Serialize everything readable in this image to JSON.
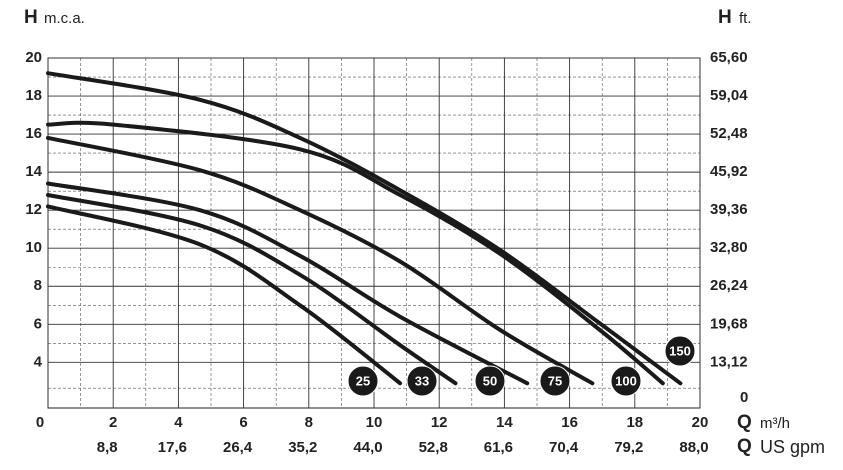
{
  "chart_data": {
    "type": "line",
    "y_axis_symbol": "H",
    "y_axis_unit": "m.c.a.",
    "y2_axis_symbol": "H",
    "y2_axis_unit": "ft.",
    "x_axis_symbol": "Q",
    "x_axis_unit": "m³/h",
    "x2_axis_symbol": "Q",
    "x2_axis_unit": "US gpm",
    "xlim": [
      0,
      20
    ],
    "xticks": [
      0,
      2,
      4,
      6,
      8,
      10,
      12,
      14,
      16,
      18,
      20
    ],
    "x2ticks": [
      {
        "value": 8.8,
        "label": "8,8"
      },
      {
        "value": 17.6,
        "label": "17,6"
      },
      {
        "value": 26.4,
        "label": "26,4"
      },
      {
        "value": 35.2,
        "label": "35,2"
      },
      {
        "value": 44.0,
        "label": "44,0"
      },
      {
        "value": 52.8,
        "label": "52,8"
      },
      {
        "value": 61.6,
        "label": "61,6"
      },
      {
        "value": 70.4,
        "label": "70,4"
      },
      {
        "value": 79.2,
        "label": "79,2"
      },
      {
        "value": 88.0,
        "label": "88,0"
      }
    ],
    "ylim": [
      1.6,
      20
    ],
    "yticks": [
      4,
      6,
      8,
      10,
      12,
      14,
      16,
      18,
      20
    ],
    "y2lim": [
      5.248,
      65.6
    ],
    "y2ticks": [
      {
        "value": 13.12,
        "label": "13,12"
      },
      {
        "value": 19.68,
        "label": "19,68"
      },
      {
        "value": 26.24,
        "label": "26,24"
      },
      {
        "value": 32.8,
        "label": "32,80"
      },
      {
        "value": 39.36,
        "label": "39,36"
      },
      {
        "value": 45.92,
        "label": "45,92"
      },
      {
        "value": 52.48,
        "label": "52,48"
      },
      {
        "value": 59.04,
        "label": "59,04"
      },
      {
        "value": 65.6,
        "label": "65,60"
      }
    ],
    "y2_origin_label": "0",
    "grid": true,
    "series": [
      {
        "name": "25",
        "color": "#1a1a1a",
        "x": [
          0,
          4.66,
          7.73,
          10.8
        ],
        "values": [
          12.2,
          10.2,
          7.0,
          2.9
        ]
      },
      {
        "name": "33",
        "color": "#1a1a1a",
        "x": [
          0,
          4.66,
          7.73,
          10.8,
          12.5
        ],
        "values": [
          12.8,
          11.2,
          8.6,
          4.9,
          2.9
        ]
      },
      {
        "name": "50",
        "color": "#1a1a1a",
        "x": [
          0,
          4.66,
          7.73,
          10.8,
          14.7
        ],
        "values": [
          13.4,
          12.0,
          9.6,
          6.4,
          2.9
        ]
      },
      {
        "name": "75",
        "color": "#1a1a1a",
        "x": [
          0,
          4.66,
          7.73,
          10.8,
          13.87,
          16.7
        ],
        "values": [
          15.8,
          14.1,
          12.0,
          9.3,
          5.7,
          2.9
        ]
      },
      {
        "name": "100",
        "color": "#1a1a1a",
        "x": [
          0,
          2,
          7.73,
          10.8,
          13.87,
          16.93,
          18.86
        ],
        "values": [
          16.5,
          16.5,
          15.2,
          12.8,
          9.7,
          5.7,
          2.9
        ]
      },
      {
        "name": "150",
        "color": "#1a1a1a",
        "x": [
          0,
          4.66,
          7.73,
          10.8,
          13.87,
          16.93,
          19.4
        ],
        "values": [
          19.2,
          17.8,
          15.8,
          13.05,
          9.9,
          6.05,
          2.9
        ]
      }
    ]
  }
}
